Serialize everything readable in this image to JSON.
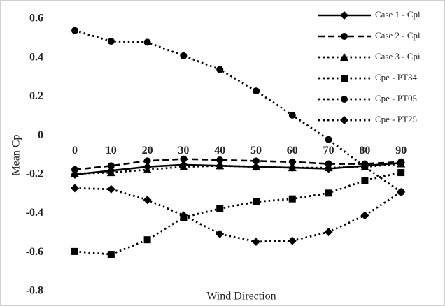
{
  "chart_data": {
    "type": "line",
    "x_label": "Wind Direction",
    "y_label": "Mean Cp",
    "categories": [
      0,
      10,
      20,
      30,
      40,
      50,
      60,
      70,
      80,
      90
    ],
    "ylim": [
      -0.8,
      0.6
    ],
    "yticks": [
      -0.8,
      -0.6,
      -0.4,
      -0.2,
      0,
      0.2,
      0.4,
      0.6
    ],
    "grid": false,
    "legend": "top-right",
    "series": [
      {
        "name": "Case 1 - Cpi",
        "color": "#000000",
        "line_style": "solid",
        "marker": "diamond",
        "values": [
          -0.2,
          -0.18,
          -0.16,
          -0.15,
          -0.155,
          -0.16,
          -0.165,
          -0.17,
          -0.155,
          -0.14
        ]
      },
      {
        "name": "Case 2 - Cpi",
        "color": "#000000",
        "line_style": "dashed",
        "marker": "circle",
        "values": [
          -0.175,
          -0.155,
          -0.13,
          -0.12,
          -0.125,
          -0.13,
          -0.135,
          -0.145,
          -0.145,
          -0.135
        ]
      },
      {
        "name": "Case 3 - Cpi",
        "color": "#000000",
        "line_style": "dotted",
        "marker": "triangle",
        "values": [
          -0.195,
          -0.19,
          -0.175,
          -0.16,
          -0.155,
          -0.16,
          -0.165,
          -0.165,
          -0.16,
          -0.145
        ]
      },
      {
        "name": "Cpe - PT34",
        "color": "#000000",
        "line_style": "dotted",
        "marker": "square",
        "values": [
          -0.595,
          -0.61,
          -0.535,
          -0.42,
          -0.375,
          -0.34,
          -0.325,
          -0.295,
          -0.23,
          -0.19
        ]
      },
      {
        "name": "Cpe - PT05",
        "color": "#000000",
        "line_style": "dotted",
        "marker": "circle",
        "values": [
          0.54,
          0.485,
          0.48,
          0.41,
          0.34,
          0.23,
          0.105,
          -0.02,
          -0.16,
          -0.29
        ]
      },
      {
        "name": "Cpe - PT25",
        "color": "#000000",
        "line_style": "dotted",
        "marker": "diamond",
        "values": [
          -0.27,
          -0.275,
          -0.33,
          -0.41,
          -0.505,
          -0.545,
          -0.54,
          -0.495,
          -0.41,
          -0.29
        ]
      }
    ]
  }
}
